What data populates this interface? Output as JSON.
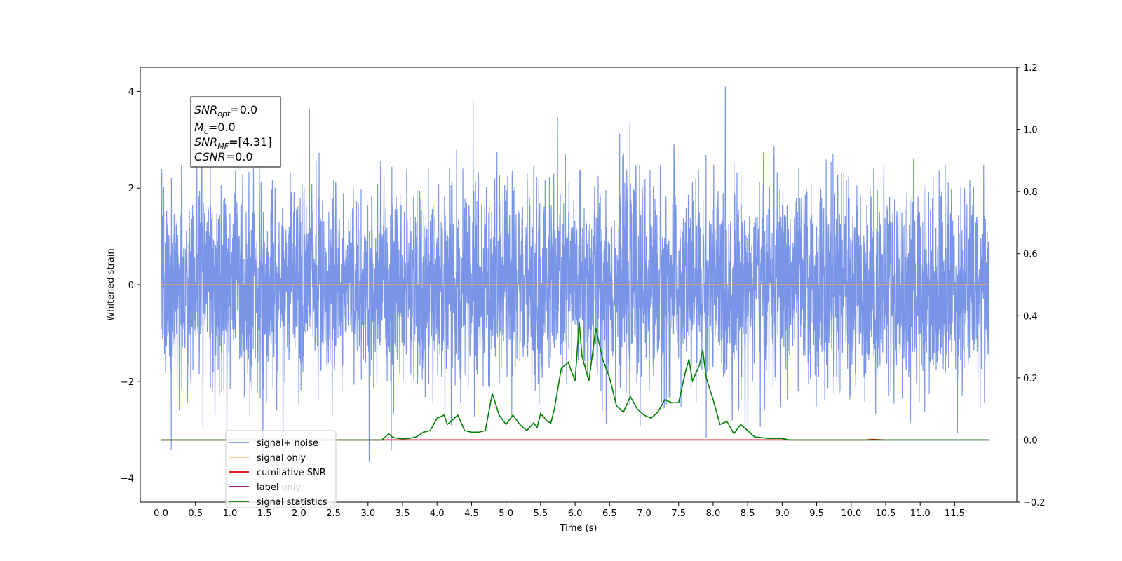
{
  "chart_data": {
    "type": "line",
    "xlabel": "Time (s)",
    "ylabel": "Whitened strain",
    "x_ticks": [
      "0.0",
      "0.5",
      "1.0",
      "1.5",
      "2.0",
      "2.5",
      "3.0",
      "3.5",
      "4.0",
      "4.5",
      "5.0",
      "5.5",
      "6.0",
      "6.5",
      "7.0",
      "7.5",
      "8.0",
      "8.5",
      "9.0",
      "9.5",
      "10.0",
      "10.5",
      "11.0",
      "11.5"
    ],
    "y_ticks_left": [
      "4",
      "2",
      "0",
      "−2",
      "−4"
    ],
    "y_ticks_right": [
      "1.2",
      "1.0",
      "0.8",
      "0.6",
      "0.4",
      "0.2",
      "0.0",
      "−0.2"
    ],
    "xlim": [
      -0.3,
      12.4
    ],
    "ylim_left": [
      -4.5,
      4.5
    ],
    "ylim_right": [
      -0.2,
      1.2
    ],
    "legend_location": "lower-left",
    "info_box": {
      "snr_opt": {
        "main": "SNR",
        "sub": "opt",
        "value": "=0.0"
      },
      "mc": {
        "main": "M",
        "sub": "c",
        "value": "=0.0"
      },
      "snr_mf": {
        "main": "SNR",
        "sub": "MF",
        "value": "=[4.31]"
      },
      "csnr": {
        "main": "CSNR",
        "value": "=0.0"
      }
    },
    "series": [
      {
        "name": "signal+ noise",
        "color": "#7a95e8",
        "axis": "left",
        "description_of_values": "whitened noise, amplitude roughly within -3.5..4.1",
        "x_range": [
          0.0,
          12.0
        ]
      },
      {
        "name": "signal only",
        "color": "#ffa94d",
        "axis": "left",
        "x": [
          0.0,
          12.0
        ],
        "values": [
          0.0,
          0.0
        ]
      },
      {
        "name": "cumilative SNR",
        "color": "#e00000",
        "axis": "right",
        "x": [
          0.0,
          10.2,
          10.3,
          10.5
        ],
        "values": [
          0.0,
          0.0,
          0.002,
          0.0
        ]
      },
      {
        "name": "label",
        "color": "#800080",
        "axis": "right",
        "x": [
          0.0,
          12.0
        ],
        "values": [
          0.0,
          0.0
        ]
      },
      {
        "name": "label only",
        "color": "#800080",
        "axis": "right",
        "hidden_in_plot": true
      },
      {
        "name": "signal statistics",
        "color": "#008000",
        "axis": "right",
        "x": [
          0.0,
          3.2,
          3.3,
          3.35,
          3.4,
          3.5,
          3.6,
          3.7,
          3.8,
          3.9,
          4.0,
          4.1,
          4.15,
          4.2,
          4.3,
          4.4,
          4.5,
          4.6,
          4.7,
          4.8,
          4.9,
          5.0,
          5.1,
          5.2,
          5.3,
          5.4,
          5.45,
          5.5,
          5.6,
          5.65,
          5.7,
          5.8,
          5.9,
          6.0,
          6.06,
          6.1,
          6.2,
          6.3,
          6.4,
          6.5,
          6.6,
          6.7,
          6.8,
          6.9,
          7.0,
          7.1,
          7.2,
          7.3,
          7.4,
          7.5,
          7.6,
          7.65,
          7.7,
          7.8,
          7.85,
          7.9,
          8.0,
          8.1,
          8.2,
          8.3,
          8.4,
          8.5,
          8.6,
          8.8,
          8.9,
          9.0,
          9.1,
          9.2,
          10.0,
          10.2,
          10.4,
          10.5,
          12.0
        ],
        "values": [
          0.0,
          0.0,
          0.02,
          0.01,
          0.006,
          0.004,
          0.005,
          0.01,
          0.025,
          0.03,
          0.07,
          0.08,
          0.05,
          0.06,
          0.08,
          0.03,
          0.025,
          0.025,
          0.03,
          0.15,
          0.08,
          0.05,
          0.08,
          0.05,
          0.03,
          0.055,
          0.04,
          0.085,
          0.06,
          0.055,
          0.1,
          0.23,
          0.25,
          0.19,
          0.38,
          0.27,
          0.19,
          0.36,
          0.26,
          0.2,
          0.11,
          0.09,
          0.14,
          0.1,
          0.08,
          0.07,
          0.09,
          0.13,
          0.12,
          0.12,
          0.22,
          0.26,
          0.19,
          0.24,
          0.29,
          0.2,
          0.13,
          0.05,
          0.06,
          0.02,
          0.05,
          0.03,
          0.01,
          0.005,
          0.005,
          0.005,
          0.0,
          0.0,
          0.0,
          0.0,
          0.0,
          0.0,
          0.0
        ]
      }
    ]
  }
}
